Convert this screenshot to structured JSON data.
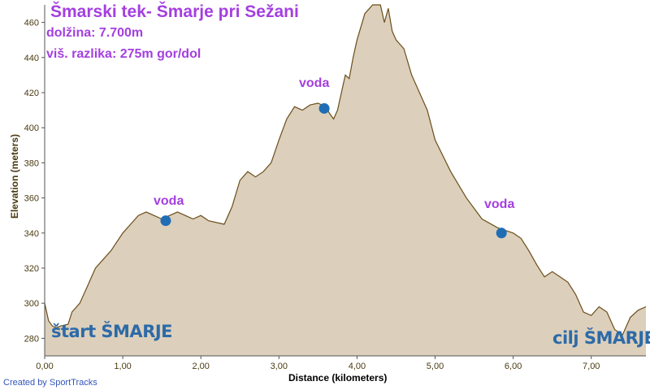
{
  "chart_data": {
    "type": "area",
    "title": "Šmarski tek- Šmarje pri Sežani",
    "subtitle_lines": [
      "dolžina: 7.700m",
      "viš. razlika: 275m gor/dol"
    ],
    "xlabel": "Distance (kilometers)",
    "ylabel": "Elevation (meters)",
    "xlim": [
      0,
      7.7
    ],
    "ylim": [
      270,
      470
    ],
    "x_ticks": [
      0,
      1,
      2,
      3,
      4,
      5,
      6,
      7
    ],
    "x_tick_labels": [
      "0,00",
      "1,00",
      "2,00",
      "3,00",
      "4,00",
      "5,00",
      "6,00",
      "7,00"
    ],
    "y_ticks": [
      280,
      300,
      320,
      340,
      360,
      380,
      400,
      420,
      440,
      460
    ],
    "y_tick_labels": [
      "280",
      "300",
      "320",
      "340",
      "360",
      "380",
      "400",
      "420",
      "440",
      "460"
    ],
    "grid": false,
    "fill_color": "#dccfbb",
    "line_color": "#6b4e1a",
    "series": [
      {
        "x": [
          0,
          0.05,
          0.1,
          0.15,
          0.2,
          0.3,
          0.35,
          0.45,
          0.55,
          0.6,
          0.65,
          0.75,
          0.85,
          1.0,
          1.1,
          1.2,
          1.3,
          1.4,
          1.5,
          1.6,
          1.7,
          1.8,
          1.9,
          2.0,
          2.1,
          2.3,
          2.4,
          2.5,
          2.6,
          2.7,
          2.8,
          2.9,
          3.0,
          3.1,
          3.2,
          3.3,
          3.4,
          3.5,
          3.6,
          3.65,
          3.7,
          3.75,
          3.8,
          3.85,
          3.9,
          3.95,
          4.0,
          4.1,
          4.2,
          4.3,
          4.35,
          4.4,
          4.45,
          4.5,
          4.6,
          4.7,
          4.8,
          4.9,
          5.0,
          5.2,
          5.4,
          5.6,
          5.8,
          6.0,
          6.1,
          6.2,
          6.3,
          6.4,
          6.5,
          6.6,
          6.7,
          6.8,
          6.9,
          7.0,
          7.1,
          7.2,
          7.3,
          7.4,
          7.5,
          7.6,
          7.7
        ],
        "y": [
          300,
          290,
          287,
          286,
          287,
          288,
          295,
          300,
          310,
          315,
          320,
          325,
          330,
          340,
          345,
          350,
          352,
          350,
          348,
          350,
          352,
          350,
          348,
          350,
          347,
          345,
          355,
          370,
          375,
          372,
          375,
          380,
          393,
          405,
          412,
          410,
          413,
          414,
          412,
          408,
          405,
          410,
          420,
          430,
          428,
          440,
          450,
          465,
          470,
          470,
          460,
          468,
          455,
          450,
          445,
          430,
          420,
          410,
          393,
          375,
          360,
          348,
          343,
          340,
          337,
          330,
          322,
          315,
          318,
          315,
          312,
          305,
          295,
          293,
          298,
          295,
          285,
          282,
          292,
          296,
          298
        ]
      }
    ],
    "markers": [
      {
        "x": 1.55,
        "y": 347,
        "label": "voda"
      },
      {
        "x": 3.58,
        "y": 411,
        "label": "voda"
      },
      {
        "x": 5.85,
        "y": 340,
        "label": "voda"
      }
    ],
    "marker_color": "#1f6db5",
    "annotations": {
      "start": "štart ŠMARJE",
      "finish": "cilj ŠMARJE"
    },
    "credit": "Created by SportTracks"
  }
}
